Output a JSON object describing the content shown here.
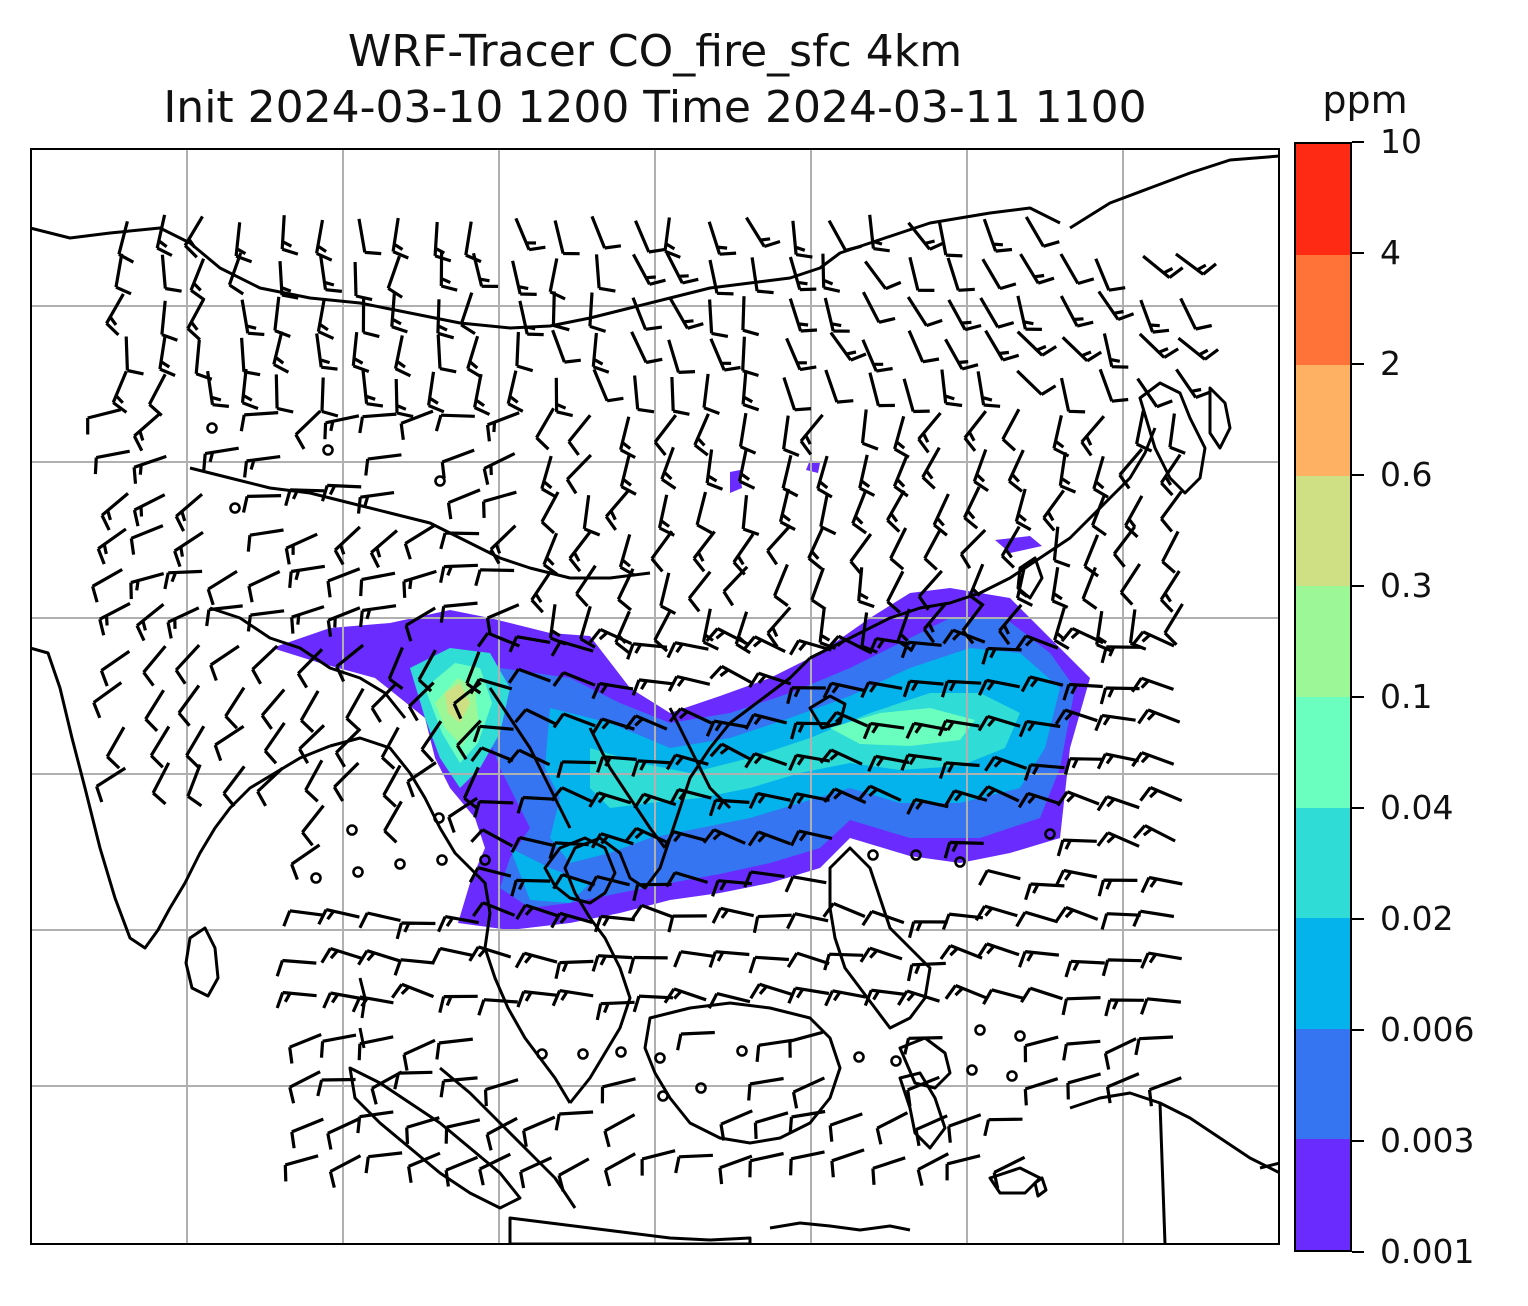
{
  "title": {
    "line1": "WRF-Tracer CO_fire_sfc 4km",
    "line2": "Init 2024-03-10 1200 Time 2024-03-11 1100"
  },
  "colorbar": {
    "unit": "ppm",
    "levels": [
      "0.001",
      "0.003",
      "0.006",
      "0.02",
      "0.04",
      "0.1",
      "0.3",
      "0.6",
      "2",
      "4",
      "10"
    ],
    "colors": [
      "#6a2bff",
      "#3575f2",
      "#04b3eb",
      "#2fdcd6",
      "#6affbe",
      "#9cf797",
      "#cfe084",
      "#ffb163",
      "#ff7339",
      "#ff2a14"
    ]
  },
  "map": {
    "gridlines": true,
    "grid_color": "#b0b0b0",
    "coastline_color": "#000000",
    "barb_color": "#000000"
  }
}
